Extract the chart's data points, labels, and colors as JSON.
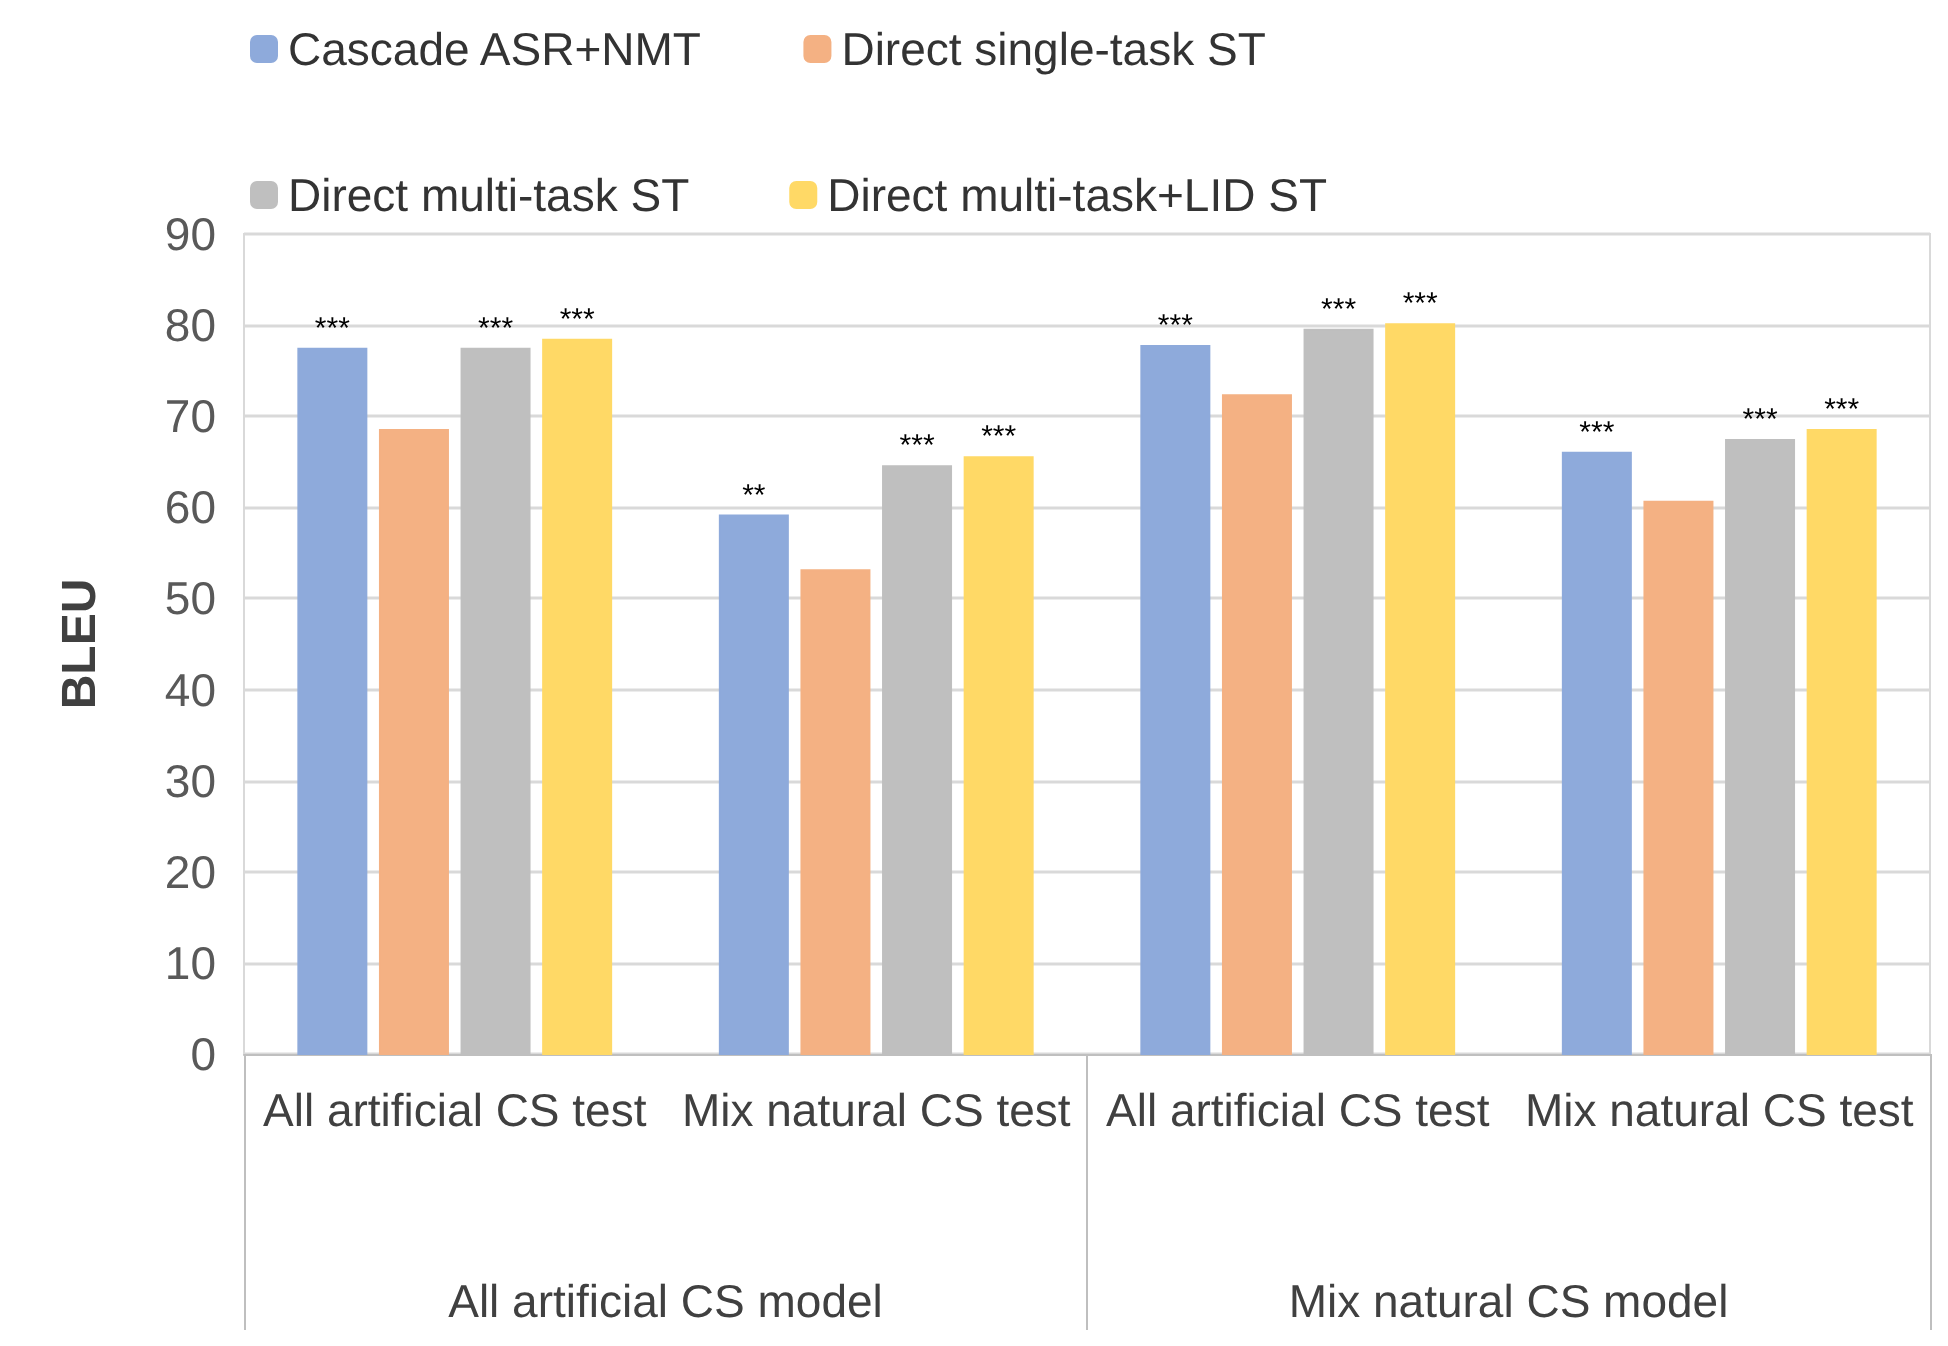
{
  "chart_data": {
    "type": "bar",
    "ylabel": "BLEU",
    "categories": [
      "All artificial CS test",
      "Mix natural CS test",
      "All artificial CS test",
      "Mix natural CS test"
    ],
    "series": [
      {
        "name": "Cascade ASR+NMT",
        "color": "#8eaadb",
        "values": [
          77.4,
          59.1,
          77.7,
          66.0
        ],
        "value_labels": [
          "***",
          "**",
          "***",
          "***"
        ]
      },
      {
        "name": "Direct single-task ST",
        "color": "#f4b183",
        "values": [
          68.5,
          53.1,
          72.3,
          60.6
        ],
        "value_labels": [
          null,
          null,
          null,
          null
        ]
      },
      {
        "name": "Direct multi-task ST",
        "color": "#bfbfbf",
        "values": [
          77.4,
          64.5,
          79.5,
          67.4
        ],
        "value_labels": [
          "***",
          "***",
          "***",
          "***"
        ]
      },
      {
        "name": "Direct multi-task+LID ST",
        "color": "#ffd966",
        "values": [
          78.4,
          65.5,
          80.1,
          68.5
        ],
        "value_labels": [
          "***",
          "***",
          "***",
          "***"
        ]
      }
    ],
    "annotations": [
      "All artificial CS model",
      "Mix natural CS model"
    ],
    "ylim": [
      0,
      90
    ],
    "yticks": [
      0,
      10,
      20,
      30,
      40,
      50,
      60,
      70,
      80,
      90
    ],
    "grid": "y",
    "legend": "top"
  }
}
